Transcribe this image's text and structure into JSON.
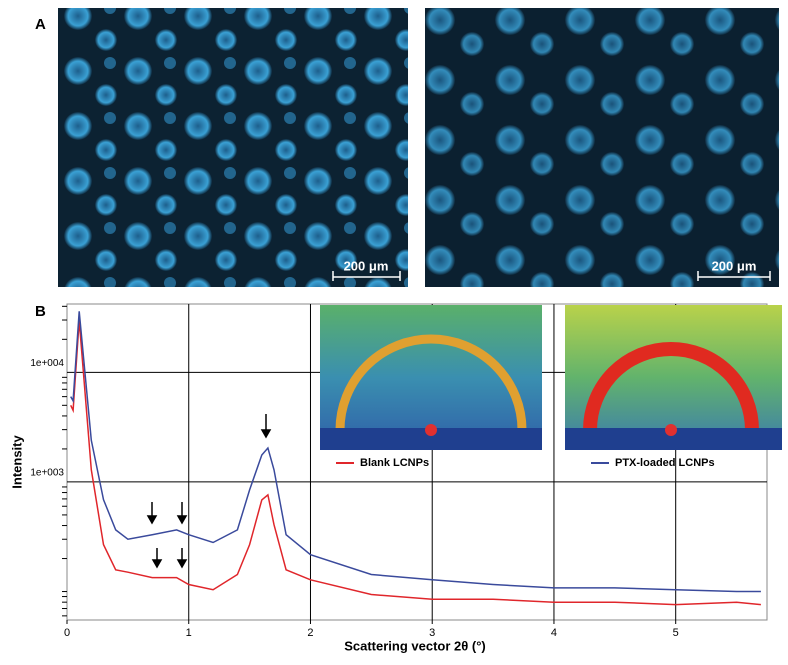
{
  "panel_labels": [
    "A",
    "B"
  ],
  "scale_bars": [
    "200 μm",
    "200 μm"
  ],
  "chart_data": {
    "type": "line",
    "ylabel": "Intensity",
    "xlabel": "Scattering vector 2θ (°)",
    "x": [
      0.03,
      0.05,
      0.1,
      0.2,
      0.3,
      0.4,
      0.5,
      0.7,
      0.9,
      1.0,
      1.2,
      1.4,
      1.5,
      1.6,
      1.65,
      1.7,
      1.8,
      2.0,
      2.5,
      3.0,
      3.5,
      4.0,
      4.5,
      5.0,
      5.5,
      5.7
    ],
    "series": [
      {
        "name": "Blank LCNPs",
        "color": "#e0262b",
        "values": [
          5000,
          4500,
          29700,
          1290,
          268,
          158,
          150,
          134,
          134,
          116,
          104,
          143,
          268,
          686,
          762,
          407,
          158,
          128,
          94,
          85,
          85,
          80,
          80,
          76,
          80,
          76
        ]
      },
      {
        "name": "PTX-loaded LCNPs",
        "color": "#3a4a9c",
        "values": [
          6000,
          5500,
          36000,
          2400,
          690,
          365,
          300,
          330,
          365,
          330,
          280,
          365,
          845,
          1760,
          2040,
          1290,
          330,
          217,
          143,
          128,
          116,
          108,
          108,
          104,
          100,
          100
        ]
      }
    ],
    "xlim": [
      0,
      5.75
    ],
    "xticks": [
      0,
      1,
      2,
      3,
      4,
      5
    ],
    "ylim": [
      55,
      42000
    ],
    "log_y": true,
    "yticks": [
      {
        "value": 1000,
        "label": "1e+003"
      },
      {
        "value": 10000,
        "label": "1e+004"
      }
    ],
    "yticks_minor": [
      60,
      70,
      80,
      90,
      100,
      200,
      300,
      400,
      500,
      600,
      700,
      800,
      900,
      2000,
      3000,
      4000,
      5000,
      6000,
      7000,
      8000,
      9000,
      20000,
      30000,
      40000
    ],
    "grid": true
  }
}
